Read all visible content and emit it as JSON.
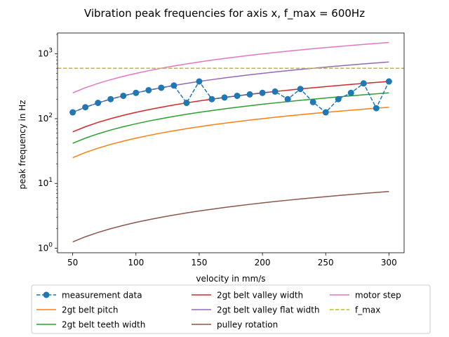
{
  "chart_data": {
    "type": "line",
    "title": "Vibration peak frequencies for axis x, f_max = 600Hz",
    "xlabel": "velocity in mm/s",
    "ylabel": "peak frequency in Hz",
    "xlim": [
      38,
      312
    ],
    "ylim": [
      0.85,
      2100
    ],
    "yscale": "log",
    "grid": false,
    "legend_position": "bottom (below plot, 3 columns)",
    "x_ticks": [
      "50",
      "100",
      "150",
      "200",
      "250",
      "300"
    ],
    "x_tick_values": [
      50,
      100,
      150,
      200,
      250,
      300
    ],
    "y_ticks": [
      {
        "base": "10",
        "exp": "0",
        "value": 1
      },
      {
        "base": "10",
        "exp": "1",
        "value": 10
      },
      {
        "base": "10",
        "exp": "2",
        "value": 100
      },
      {
        "base": "10",
        "exp": "3",
        "value": 1000
      }
    ],
    "x": [
      50,
      60,
      70,
      80,
      90,
      100,
      110,
      120,
      130,
      140,
      150,
      160,
      170,
      180,
      190,
      200,
      210,
      220,
      230,
      240,
      250,
      260,
      270,
      280,
      290,
      300
    ],
    "series": [
      {
        "name": "measurement data",
        "color": "#1f77b4",
        "style": "dashed-markers",
        "values": [
          125,
          150,
          175,
          200,
          225,
          250,
          275,
          300,
          325,
          175,
          375,
          200,
          212,
          225,
          237,
          250,
          262,
          200,
          287,
          180,
          125,
          200,
          250,
          350,
          145,
          375
        ]
      },
      {
        "name": "2gt belt pitch",
        "color": "#ff7f0e",
        "style": "solid",
        "values": [
          25,
          30,
          35,
          40,
          45,
          50,
          55,
          60,
          65,
          70,
          75,
          80,
          85,
          90,
          95,
          100,
          105,
          110,
          115,
          120,
          125,
          130,
          135,
          140,
          145,
          150
        ]
      },
      {
        "name": "2gt belt teeth width",
        "color": "#2ca02c",
        "style": "solid",
        "values": [
          41.7,
          50,
          58.3,
          66.7,
          75,
          83.3,
          91.7,
          100,
          108.3,
          116.7,
          125,
          133.3,
          141.7,
          150,
          158.3,
          166.7,
          175,
          183.3,
          191.7,
          200,
          208.3,
          216.7,
          225,
          233.3,
          241.7,
          250
        ]
      },
      {
        "name": "2gt belt valley width",
        "color": "#d62728",
        "style": "solid",
        "values": [
          62.5,
          75,
          87.5,
          100,
          112.5,
          125,
          137.5,
          150,
          162.5,
          175,
          187.5,
          200,
          212.5,
          225,
          237.5,
          250,
          262.5,
          275,
          287.5,
          300,
          312.5,
          325,
          337.5,
          350,
          362.5,
          375
        ]
      },
      {
        "name": "2gt belt valley flat width",
        "color": "#9467bd",
        "style": "solid",
        "values": [
          125,
          150,
          175,
          200,
          225,
          250,
          275,
          300,
          325,
          350,
          375,
          400,
          425,
          450,
          475,
          500,
          525,
          550,
          575,
          600,
          625,
          650,
          675,
          700,
          725,
          750
        ]
      },
      {
        "name": "pulley rotation",
        "color": "#8c564b",
        "style": "solid",
        "values": [
          1.25,
          1.5,
          1.75,
          2.0,
          2.25,
          2.5,
          2.75,
          3.0,
          3.25,
          3.5,
          3.75,
          4.0,
          4.25,
          4.5,
          4.75,
          5.0,
          5.25,
          5.5,
          5.75,
          6.0,
          6.25,
          6.5,
          6.75,
          7.0,
          7.25,
          7.5
        ]
      },
      {
        "name": "motor step",
        "color": "#e377c2",
        "style": "solid",
        "values": [
          250,
          300,
          350,
          400,
          450,
          500,
          550,
          600,
          650,
          700,
          750,
          800,
          850,
          900,
          950,
          1000,
          1050,
          1100,
          1150,
          1200,
          1250,
          1300,
          1350,
          1400,
          1450,
          1500
        ]
      },
      {
        "name": "f_max",
        "color": "#bcbd22",
        "style": "dashed-hline",
        "value": 600
      }
    ]
  }
}
